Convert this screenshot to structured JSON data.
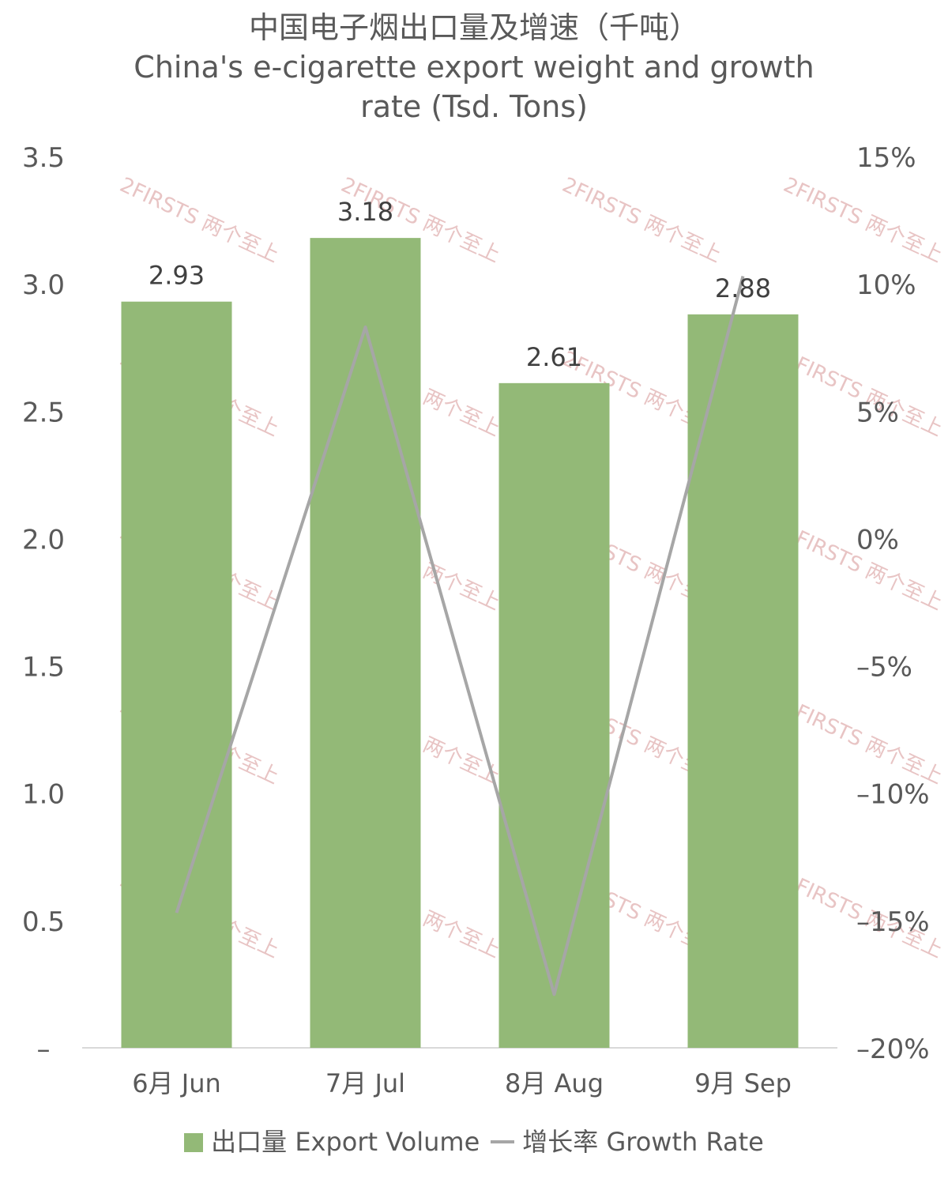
{
  "chart_data": {
    "type": "bar+line",
    "title_zh": "中国电子烟出口量及增速（千吨）",
    "title_en_line1": "China's e-cigarette export weight and growth",
    "title_en_line2": "rate (Tsd. Tons)",
    "categories": [
      "6月 Jun",
      "7月 Jul",
      "8月 Aug",
      "9月 Sep"
    ],
    "series": [
      {
        "name": "出口量 Export Volume",
        "type": "bar",
        "axis": "left",
        "color": "#93b977",
        "values": [
          2.93,
          3.18,
          2.61,
          2.88
        ],
        "labels": [
          "2.93",
          "3.18",
          "2.61",
          "2.88"
        ]
      },
      {
        "name": "增长率 Growth Rate",
        "type": "line",
        "axis": "right",
        "color": "#a6a6a6",
        "values": [
          -14.7,
          8.3,
          -17.9,
          10.3
        ]
      }
    ],
    "y_left": {
      "min": 0,
      "max": 3.5,
      "ticks": [
        0,
        0.5,
        1.0,
        1.5,
        2.0,
        2.5,
        3.0,
        3.5
      ],
      "tick_labels": [
        "–",
        "0.5",
        "1.0",
        "1.5",
        "2.0",
        "2.5",
        "3.0",
        "3.5"
      ]
    },
    "y_right": {
      "min": -20,
      "max": 15,
      "ticks": [
        15,
        10,
        5,
        0,
        -5,
        -10,
        -15,
        -20
      ],
      "tick_labels": [
        "15%",
        "10%",
        "5%",
        "0%",
        "–5%",
        "–10%",
        "–15%",
        "–20%"
      ]
    },
    "legend": {
      "position": "bottom",
      "bar_label": "出口量 Export Volume",
      "line_label": "增长率 Growth Rate"
    },
    "watermark": "2FIRSTS 两个至上"
  }
}
